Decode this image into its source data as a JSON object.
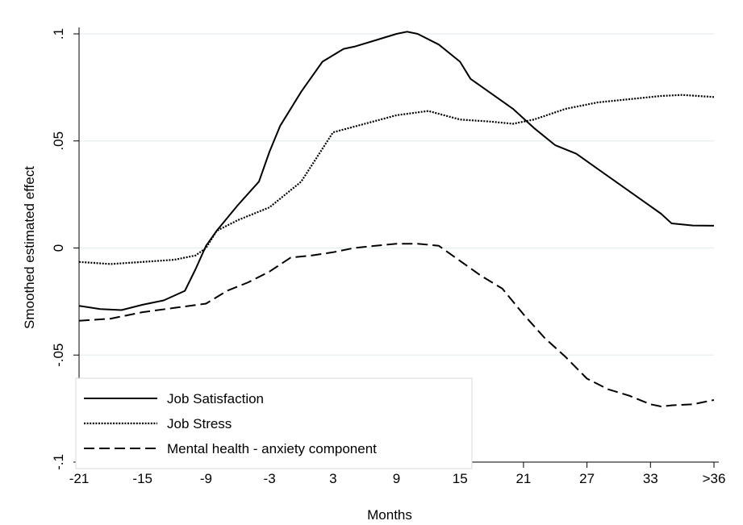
{
  "chart_data": {
    "type": "line",
    "xlabel": "Months",
    "ylabel": "Smoothed estimated effect",
    "x_ticks": [
      {
        "value": -21,
        "label": "-21"
      },
      {
        "value": -15,
        "label": "-15"
      },
      {
        "value": -9,
        "label": "-9"
      },
      {
        "value": -3,
        "label": "-3"
      },
      {
        "value": 3,
        "label": "3"
      },
      {
        "value": 9,
        "label": "9"
      },
      {
        "value": 15,
        "label": "15"
      },
      {
        "value": 21,
        "label": "21"
      },
      {
        "value": 27,
        "label": "27"
      },
      {
        "value": 33,
        "label": "33"
      },
      {
        "value": 39,
        "label": ">36"
      }
    ],
    "y_ticks": [
      {
        "value": -0.1,
        "label": "-.1"
      },
      {
        "value": -0.05,
        "label": "-.05"
      },
      {
        "value": 0,
        "label": "0"
      },
      {
        "value": 0.05,
        "label": ".05"
      },
      {
        "value": 0.1,
        "label": ".1"
      }
    ],
    "xlim": [
      -21,
      39
    ],
    "ylim": [
      -0.1,
      0.1
    ],
    "grid": "horizontal",
    "legend_position": "bottom-left",
    "series": [
      {
        "name": "Job Satisfaction",
        "style": "solid",
        "x": [
          -21,
          -19,
          -17,
          -15,
          -13,
          -11,
          -10,
          -9,
          -8,
          -6,
          -4,
          -3,
          -2,
          0,
          2,
          4,
          5,
          7,
          9,
          10,
          11,
          13,
          15,
          16,
          18,
          20,
          22,
          24,
          26,
          28,
          30,
          32,
          34,
          35,
          37,
          39
        ],
        "y": [
          -0.027,
          -0.0285,
          -0.029,
          -0.0265,
          -0.0245,
          -0.02,
          -0.01,
          0.001,
          0.008,
          0.02,
          0.031,
          0.045,
          0.057,
          0.073,
          0.087,
          0.093,
          0.094,
          0.097,
          0.1,
          0.101,
          0.1,
          0.095,
          0.087,
          0.079,
          0.072,
          0.065,
          0.056,
          0.048,
          0.044,
          0.037,
          0.03,
          0.023,
          0.016,
          0.0115,
          0.0105,
          0.0104
        ]
      },
      {
        "name": "Job Stress",
        "style": "dotted",
        "x": [
          -21,
          -18,
          -15,
          -12,
          -10,
          -9,
          -8,
          -6,
          -3,
          0,
          3,
          6,
          9,
          12,
          15,
          18,
          20,
          22,
          25,
          28,
          31,
          34,
          36,
          39
        ],
        "y": [
          -0.0065,
          -0.0075,
          -0.0065,
          -0.0055,
          -0.0035,
          0,
          0.008,
          0.013,
          0.019,
          0.031,
          0.054,
          0.058,
          0.062,
          0.064,
          0.06,
          0.059,
          0.058,
          0.06,
          0.065,
          0.068,
          0.0695,
          0.071,
          0.0715,
          0.0705
        ]
      },
      {
        "name": "Mental health - anxiety component",
        "style": "dashed",
        "x": [
          -21,
          -18,
          -15,
          -12,
          -9,
          -7,
          -5,
          -3,
          -1,
          1,
          3,
          5,
          7,
          9,
          11,
          13,
          15,
          17,
          19,
          21,
          23,
          25,
          27,
          29,
          31,
          33,
          34,
          35,
          37,
          39
        ],
        "y": [
          -0.034,
          -0.033,
          -0.03,
          -0.028,
          -0.026,
          -0.02,
          -0.016,
          -0.011,
          -0.0045,
          -0.0035,
          -0.002,
          0,
          0.001,
          0.002,
          0.002,
          0.001,
          -0.006,
          -0.013,
          -0.019,
          -0.031,
          -0.042,
          -0.051,
          -0.061,
          -0.066,
          -0.069,
          -0.073,
          -0.074,
          -0.0735,
          -0.073,
          -0.071
        ]
      }
    ]
  }
}
